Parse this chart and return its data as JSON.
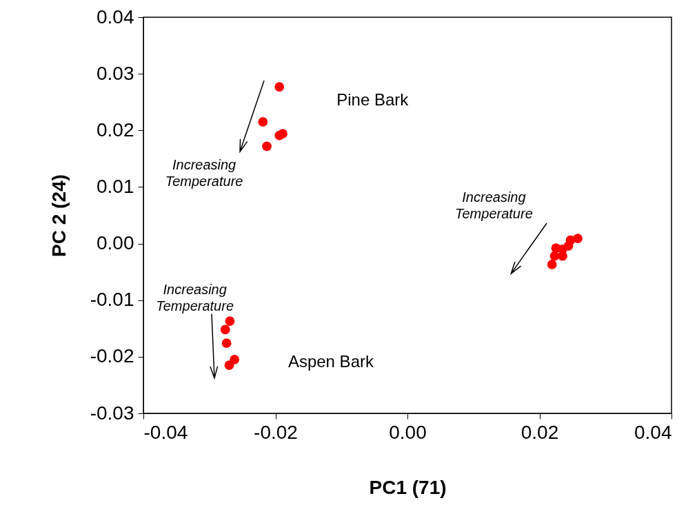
{
  "chart_data": {
    "type": "scatter",
    "xlabel": "PC1 (71)",
    "ylabel": "PC 2 (24)",
    "x": [
      -0.0194,
      -0.0219,
      -0.0213,
      -0.0194,
      -0.0189,
      -0.0269,
      -0.0276,
      -0.0274,
      -0.0262,
      -0.027,
      0.0258,
      0.0247,
      0.0244,
      0.0235,
      0.0225,
      0.0235,
      0.0223,
      0.0219
    ],
    "series": [
      {
        "color": "#ff0000",
        "values": [
          0.0277,
          0.0215,
          0.0172,
          0.0191,
          0.0194,
          -0.0137,
          -0.0152,
          -0.0176,
          -0.0205,
          -0.0215,
          0.0009,
          0.0006,
          -0.0004,
          -0.001,
          -0.0008,
          -0.0022,
          -0.0022,
          -0.0037
        ]
      }
    ],
    "marker": "circle",
    "grid": false,
    "xlim": [
      -0.04,
      0.04
    ],
    "xticks": [
      -0.04,
      -0.02,
      {
        "value": 0,
        "label": "0.00"
      },
      0.02,
      0.04
    ],
    "ylim": [
      -0.03,
      0.04
    ],
    "yticks": [
      -0.03,
      -0.02,
      -0.01,
      {
        "value": 0,
        "label": "0.00"
      },
      0.01,
      0.02,
      0.03,
      0.04
    ],
    "annotations": [
      "Pine Bark",
      "Increasing\nTemperature",
      "Increasing\nTemperature",
      "Increasing\nTemperature",
      "Aspen Bark"
    ]
  }
}
